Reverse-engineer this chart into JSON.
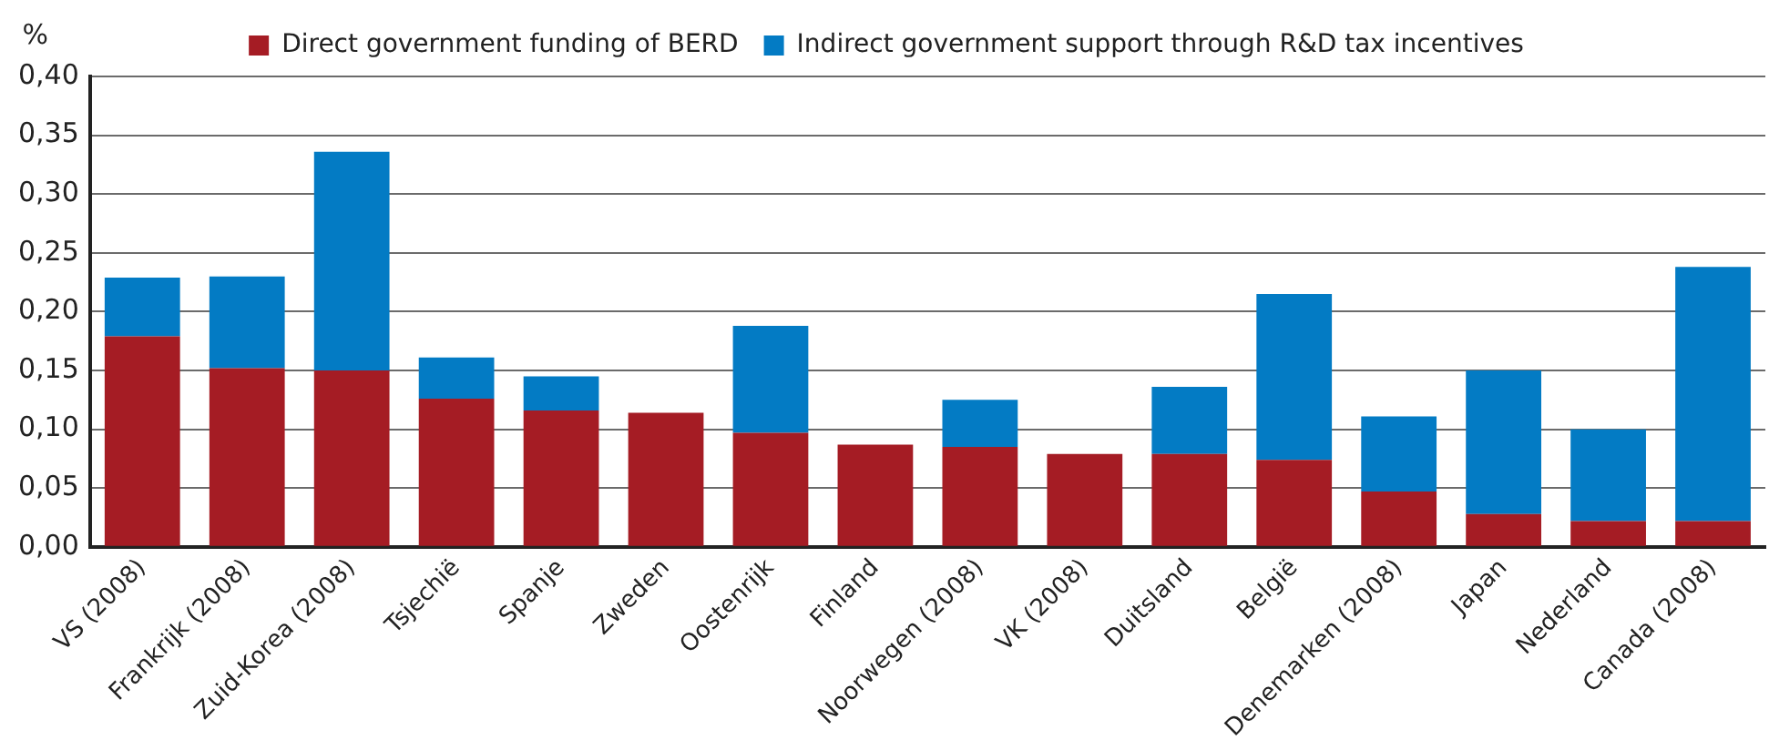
{
  "chart_data": {
    "type": "bar",
    "ylabel": "%",
    "categories": [
      "VS (2008)",
      "Frankrijk (2008)",
      "Zuid-Korea (2008)",
      "Tsjechië",
      "Spanje",
      "Zweden",
      "Oostenrijk",
      "Finland",
      "Noorwegen (2008)",
      "VK (2008)",
      "Duitsland",
      "België",
      "Denemarken (2008)",
      "Japan",
      "Nederland",
      "Canada (2008)"
    ],
    "series": [
      {
        "name": "Direct government funding of BERD",
        "color": "#a51c24",
        "values": [
          0.179,
          0.152,
          0.15,
          0.126,
          0.116,
          0.114,
          0.097,
          0.087,
          0.085,
          0.079,
          0.079,
          0.074,
          0.047,
          0.028,
          0.022,
          0.022
        ]
      },
      {
        "name": "Indirect government support through R&D tax incentives",
        "color": "#037bc4",
        "values": [
          0.05,
          0.078,
          0.186,
          0.035,
          0.029,
          null,
          0.091,
          null,
          0.04,
          null,
          0.057,
          0.141,
          0.064,
          0.122,
          0.078,
          0.216
        ]
      }
    ],
    "stacked": true,
    "ylim": [
      0,
      0.4
    ],
    "yticks": [
      {
        "value": 0,
        "label": "0,00"
      },
      {
        "value": 0.05,
        "label": "0,05"
      },
      {
        "value": 0.1,
        "label": "0,10"
      },
      {
        "value": 0.15,
        "label": "0,15"
      },
      {
        "value": 0.2,
        "label": "0,20"
      },
      {
        "value": 0.25,
        "label": "0,25"
      },
      {
        "value": 0.3,
        "label": "0,30"
      },
      {
        "value": 0.35,
        "label": "0,35"
      },
      {
        "value": 0.4,
        "label": "0,40"
      }
    ],
    "grid": "y",
    "legend": "top"
  }
}
